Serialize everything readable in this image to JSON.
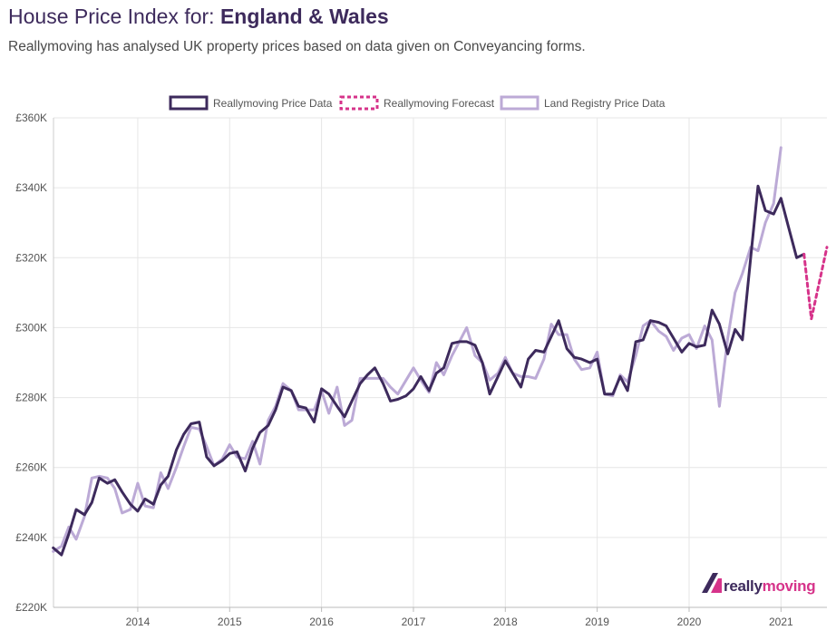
{
  "header": {
    "title_prefix": "House Price Index for: ",
    "title_region": "England & Wales",
    "subtitle": "Reallymoving has analysed UK property prices based on data given on Conveyancing forms."
  },
  "logo": {
    "part1": "really",
    "part2": "moving"
  },
  "chart_data": {
    "type": "line",
    "ylim": [
      220000,
      360000
    ],
    "y_ticks": [
      220000,
      240000,
      260000,
      280000,
      300000,
      320000,
      340000,
      360000
    ],
    "y_tick_labels": [
      "£220K",
      "£240K",
      "£260K",
      "£280K",
      "£300K",
      "£320K",
      "£340K",
      "£360K"
    ],
    "xlim": [
      2013.083,
      2021.5
    ],
    "x_ticks": [
      2014,
      2015,
      2016,
      2017,
      2018,
      2019,
      2020,
      2021
    ],
    "x_tick_labels": [
      "2014",
      "2015",
      "2016",
      "2017",
      "2018",
      "2019",
      "2020",
      "2021"
    ],
    "grid": true,
    "legend_position": "top-center",
    "colors": {
      "reallymoving": "#3d2a5c",
      "forecast": "#d6338a",
      "land_registry": "#bcaad6",
      "grid": "#e6e6e6",
      "axis_text": "#555555"
    },
    "series": [
      {
        "name": "Reallymoving Price Data",
        "style": "solid",
        "points": [
          [
            2013.08,
            237000
          ],
          [
            2013.17,
            235000
          ],
          [
            2013.25,
            241000
          ],
          [
            2013.33,
            248000
          ],
          [
            2013.42,
            246500
          ],
          [
            2013.5,
            250000
          ],
          [
            2013.58,
            257000
          ],
          [
            2013.67,
            255500
          ],
          [
            2013.75,
            256500
          ],
          [
            2013.83,
            253000
          ],
          [
            2013.92,
            249500
          ],
          [
            2014.0,
            247500
          ],
          [
            2014.08,
            251000
          ],
          [
            2014.17,
            249500
          ],
          [
            2014.25,
            255000
          ],
          [
            2014.33,
            257500
          ],
          [
            2014.42,
            265000
          ],
          [
            2014.5,
            269500
          ],
          [
            2014.58,
            272500
          ],
          [
            2014.67,
            273000
          ],
          [
            2014.75,
            263000
          ],
          [
            2014.83,
            260500
          ],
          [
            2014.92,
            262000
          ],
          [
            2015.0,
            264000
          ],
          [
            2015.08,
            264500
          ],
          [
            2015.17,
            259000
          ],
          [
            2015.25,
            265500
          ],
          [
            2015.33,
            270000
          ],
          [
            2015.42,
            272000
          ],
          [
            2015.5,
            276500
          ],
          [
            2015.58,
            283000
          ],
          [
            2015.67,
            282000
          ],
          [
            2015.75,
            277500
          ],
          [
            2015.83,
            277000
          ],
          [
            2015.92,
            273000
          ],
          [
            2016.0,
            282500
          ],
          [
            2016.08,
            281000
          ],
          [
            2016.17,
            277500
          ],
          [
            2016.25,
            274500
          ],
          [
            2016.33,
            279000
          ],
          [
            2016.42,
            284000
          ],
          [
            2016.5,
            286500
          ],
          [
            2016.58,
            288500
          ],
          [
            2016.67,
            284000
          ],
          [
            2016.75,
            279000
          ],
          [
            2016.83,
            279500
          ],
          [
            2016.92,
            280500
          ],
          [
            2017.0,
            282500
          ],
          [
            2017.08,
            286000
          ],
          [
            2017.17,
            282000
          ],
          [
            2017.25,
            287000
          ],
          [
            2017.33,
            288500
          ],
          [
            2017.42,
            295500
          ],
          [
            2017.5,
            296000
          ],
          [
            2017.58,
            296000
          ],
          [
            2017.67,
            295000
          ],
          [
            2017.75,
            290000
          ],
          [
            2017.83,
            281000
          ],
          [
            2017.92,
            286000
          ],
          [
            2018.0,
            290500
          ],
          [
            2018.08,
            287000
          ],
          [
            2018.17,
            283000
          ],
          [
            2018.25,
            291000
          ],
          [
            2018.33,
            293500
          ],
          [
            2018.42,
            293000
          ],
          [
            2018.5,
            297500
          ],
          [
            2018.58,
            302000
          ],
          [
            2018.67,
            294000
          ],
          [
            2018.75,
            291500
          ],
          [
            2018.83,
            291000
          ],
          [
            2018.92,
            290000
          ],
          [
            2019.0,
            291000
          ],
          [
            2019.08,
            281000
          ],
          [
            2019.17,
            281000
          ],
          [
            2019.25,
            286000
          ],
          [
            2019.33,
            282000
          ],
          [
            2019.42,
            296000
          ],
          [
            2019.5,
            296500
          ],
          [
            2019.58,
            302000
          ],
          [
            2019.67,
            301500
          ],
          [
            2019.75,
            300500
          ],
          [
            2019.83,
            297000
          ],
          [
            2019.92,
            293000
          ],
          [
            2020.0,
            295500
          ],
          [
            2020.08,
            294500
          ],
          [
            2020.17,
            295000
          ],
          [
            2020.25,
            305000
          ],
          [
            2020.33,
            301000
          ],
          [
            2020.42,
            292500
          ],
          [
            2020.5,
            299500
          ],
          [
            2020.58,
            296500
          ],
          [
            2020.67,
            320000
          ],
          [
            2020.75,
            340500
          ],
          [
            2020.83,
            333500
          ],
          [
            2020.92,
            332500
          ],
          [
            2021.0,
            337000
          ],
          [
            2021.08,
            329000
          ],
          [
            2021.17,
            320000
          ],
          [
            2021.25,
            321000
          ]
        ]
      },
      {
        "name": "Reallymoving Forecast",
        "style": "dashed",
        "points": [
          [
            2021.25,
            321000
          ],
          [
            2021.33,
            302500
          ],
          [
            2021.5,
            323000
          ]
        ]
      },
      {
        "name": "Land Registry Price Data",
        "style": "solid",
        "points": [
          [
            2013.08,
            236000
          ],
          [
            2013.17,
            237500
          ],
          [
            2013.25,
            243000
          ],
          [
            2013.33,
            239500
          ],
          [
            2013.42,
            246000
          ],
          [
            2013.5,
            257000
          ],
          [
            2013.58,
            257500
          ],
          [
            2013.67,
            257000
          ],
          [
            2013.75,
            254000
          ],
          [
            2013.83,
            247000
          ],
          [
            2013.92,
            248000
          ],
          [
            2014.0,
            255500
          ],
          [
            2014.08,
            249000
          ],
          [
            2014.17,
            248500
          ],
          [
            2014.25,
            258500
          ],
          [
            2014.33,
            254000
          ],
          [
            2014.42,
            260000
          ],
          [
            2014.5,
            266000
          ],
          [
            2014.58,
            271500
          ],
          [
            2014.67,
            271000
          ],
          [
            2014.75,
            266000
          ],
          [
            2014.83,
            260500
          ],
          [
            2014.92,
            262500
          ],
          [
            2015.0,
            266500
          ],
          [
            2015.08,
            263000
          ],
          [
            2015.17,
            262500
          ],
          [
            2015.25,
            267500
          ],
          [
            2015.33,
            261000
          ],
          [
            2015.42,
            273500
          ],
          [
            2015.5,
            277500
          ],
          [
            2015.58,
            284000
          ],
          [
            2015.67,
            282000
          ],
          [
            2015.75,
            276500
          ],
          [
            2015.83,
            276500
          ],
          [
            2015.92,
            276500
          ],
          [
            2016.0,
            282000
          ],
          [
            2016.08,
            275500
          ],
          [
            2016.17,
            283000
          ],
          [
            2016.25,
            272000
          ],
          [
            2016.33,
            273500
          ],
          [
            2016.42,
            285500
          ],
          [
            2016.5,
            285500
          ],
          [
            2016.58,
            285500
          ],
          [
            2016.67,
            285500
          ],
          [
            2016.75,
            283000
          ],
          [
            2016.83,
            281000
          ],
          [
            2016.92,
            285000
          ],
          [
            2017.0,
            288500
          ],
          [
            2017.08,
            285000
          ],
          [
            2017.17,
            281500
          ],
          [
            2017.25,
            290000
          ],
          [
            2017.33,
            286500
          ],
          [
            2017.42,
            292000
          ],
          [
            2017.5,
            296000
          ],
          [
            2017.58,
            300000
          ],
          [
            2017.67,
            292000
          ],
          [
            2017.75,
            290000
          ],
          [
            2017.83,
            285000
          ],
          [
            2017.92,
            287000
          ],
          [
            2018.0,
            291500
          ],
          [
            2018.08,
            287000
          ],
          [
            2018.17,
            286000
          ],
          [
            2018.25,
            286000
          ],
          [
            2018.33,
            285500
          ],
          [
            2018.42,
            291000
          ],
          [
            2018.5,
            301000
          ],
          [
            2018.58,
            298000
          ],
          [
            2018.67,
            298000
          ],
          [
            2018.75,
            291000
          ],
          [
            2018.83,
            288000
          ],
          [
            2018.92,
            288500
          ],
          [
            2019.0,
            293000
          ],
          [
            2019.08,
            281000
          ],
          [
            2019.17,
            280500
          ],
          [
            2019.25,
            286500
          ],
          [
            2019.33,
            284500
          ],
          [
            2019.42,
            292000
          ],
          [
            2019.5,
            300500
          ],
          [
            2019.58,
            302000
          ],
          [
            2019.67,
            299000
          ],
          [
            2019.75,
            297500
          ],
          [
            2019.83,
            293500
          ],
          [
            2019.92,
            297000
          ],
          [
            2020.0,
            298000
          ],
          [
            2020.08,
            294000
          ],
          [
            2020.17,
            300500
          ],
          [
            2020.25,
            296500
          ],
          [
            2020.33,
            277500
          ],
          [
            2020.42,
            297000
          ],
          [
            2020.5,
            310000
          ],
          [
            2020.58,
            315500
          ],
          [
            2020.67,
            323000
          ],
          [
            2020.75,
            322000
          ],
          [
            2020.83,
            330000
          ],
          [
            2020.92,
            335500
          ],
          [
            2021.0,
            351500
          ]
        ]
      }
    ]
  }
}
